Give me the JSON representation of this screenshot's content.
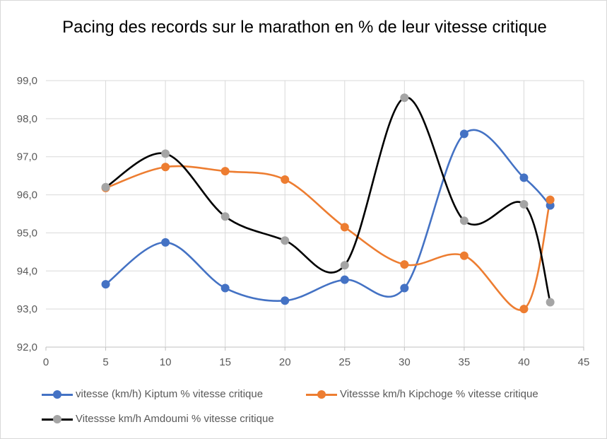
{
  "chart_data": {
    "type": "line",
    "title": "Pacing des records sur le marathon en % de leur vitesse critique",
    "xlim": [
      0,
      45
    ],
    "ylim": [
      92.0,
      99.0
    ],
    "x_ticks": [
      "0",
      "5",
      "10",
      "15",
      "20",
      "25",
      "30",
      "35",
      "40",
      "45"
    ],
    "y_ticks": [
      "92,0",
      "93,0",
      "94,0",
      "95,0",
      "96,0",
      "97,0",
      "98,0",
      "99,0"
    ],
    "grid": true,
    "legend_position": "bottom",
    "smooth": true,
    "x": [
      5,
      10,
      15,
      20,
      25,
      30,
      35,
      40,
      42.2
    ],
    "series": [
      {
        "name": "vitesse (km/h) Kiptum % vitesse critique",
        "line_color": "#4472c4",
        "marker_color": "#4472c4",
        "values": [
          93.65,
          94.75,
          93.55,
          93.22,
          93.77,
          93.55,
          97.6,
          96.45,
          95.72
        ]
      },
      {
        "name": "Vitessse km/h Kipchoge % vitesse critique",
        "line_color": "#ed7d31",
        "marker_color": "#ed7d31",
        "values": [
          96.18,
          96.73,
          96.62,
          96.4,
          95.15,
          94.17,
          94.4,
          93.0,
          95.87
        ]
      },
      {
        "name": "Vitessse km/h Amdoumi % vitesse critique",
        "line_color": "#000000",
        "marker_color": "#a5a5a5",
        "values": [
          96.2,
          97.08,
          95.43,
          94.8,
          94.15,
          98.55,
          95.32,
          95.75,
          93.18
        ]
      }
    ]
  }
}
